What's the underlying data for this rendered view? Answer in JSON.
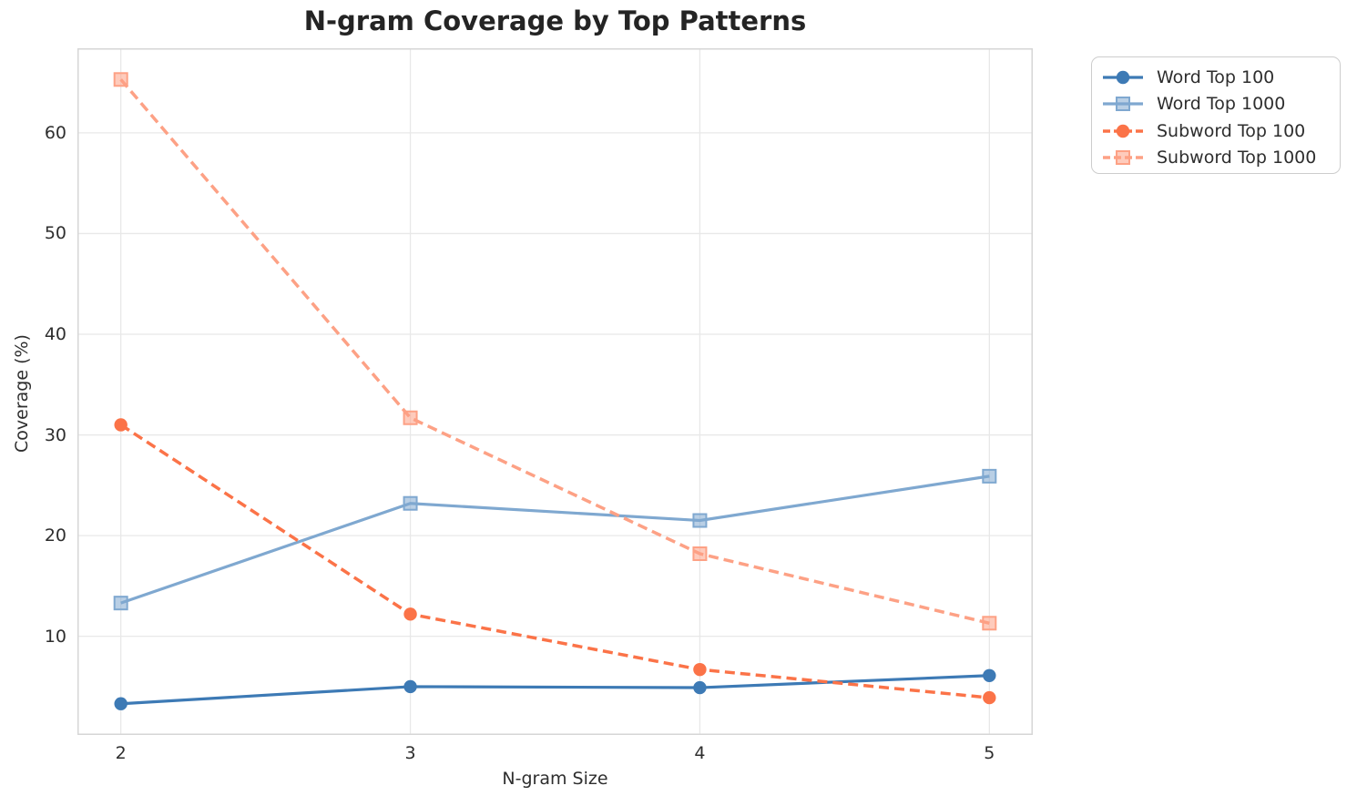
{
  "chart_data": {
    "type": "line",
    "title": "N-gram Coverage by Top Patterns",
    "xlabel": "N-gram Size",
    "ylabel": "Coverage (%)",
    "x": [
      2,
      3,
      4,
      5
    ],
    "x_tick_labels": [
      "2",
      "3",
      "4",
      "5"
    ],
    "y_ticks": [
      10,
      20,
      30,
      40,
      50,
      60
    ],
    "xlim": [
      1.85,
      5.15
    ],
    "ylim": [
      0.2,
      68.4
    ],
    "grid": true,
    "grid_color": "#e8e8e8",
    "spine_color": "#d6d6d6",
    "legend_position": "upper-right-outside",
    "series": [
      {
        "name": "Word Top 100",
        "values": [
          3.3,
          5.0,
          4.9,
          6.1
        ],
        "color": "#3d7ab5",
        "marker": "circle",
        "line_style": "solid"
      },
      {
        "name": "Word Top 1000",
        "values": [
          13.3,
          23.2,
          21.5,
          25.9
        ],
        "color": "#7fa8d0",
        "marker": "square",
        "line_style": "solid"
      },
      {
        "name": "Subword Top 100",
        "values": [
          31.0,
          12.2,
          6.7,
          3.9
        ],
        "color": "#fb7348",
        "marker": "circle",
        "line_style": "dashed"
      },
      {
        "name": "Subword Top 1000",
        "values": [
          65.3,
          31.7,
          18.2,
          11.3
        ],
        "color": "#fda185",
        "marker": "square",
        "line_style": "dashed"
      }
    ]
  }
}
